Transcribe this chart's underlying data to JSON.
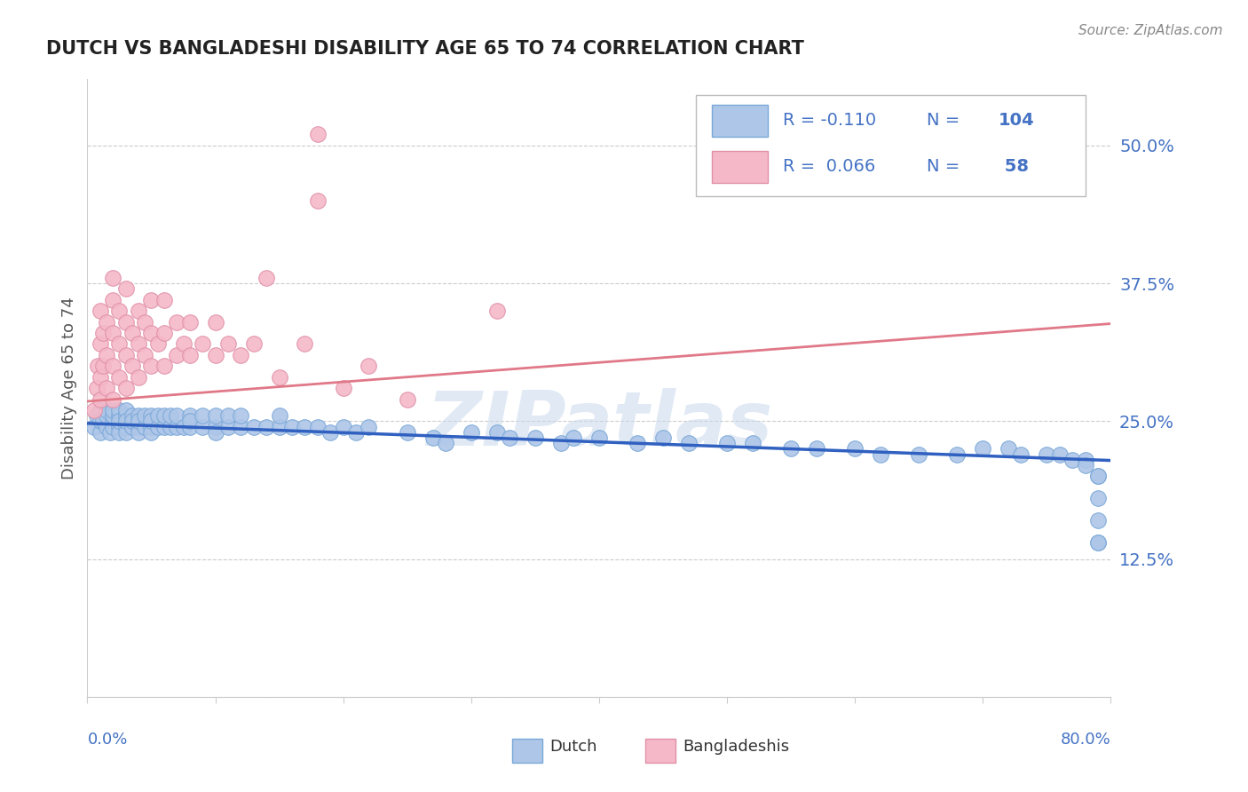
{
  "title": "DUTCH VS BANGLADESHI DISABILITY AGE 65 TO 74 CORRELATION CHART",
  "source": "Source: ZipAtlas.com",
  "ylabel": "Disability Age 65 to 74",
  "xlim": [
    0.0,
    0.8
  ],
  "ylim": [
    0.0,
    0.56
  ],
  "dutch_R": -0.11,
  "dutch_N": 104,
  "bangladeshi_R": 0.066,
  "bangladeshi_N": 58,
  "dutch_color": "#aec6e8",
  "bangladeshi_color": "#f5b8c8",
  "dutch_line_color": "#3060c0",
  "bangladeshi_line_color": "#e07888",
  "label_color": "#4472c4",
  "watermark": "ZIPatlas",
  "dutch_x": [
    0.005,
    0.007,
    0.01,
    0.01,
    0.01,
    0.012,
    0.015,
    0.015,
    0.015,
    0.018,
    0.02,
    0.02,
    0.02,
    0.02,
    0.025,
    0.025,
    0.025,
    0.025,
    0.025,
    0.03,
    0.03,
    0.03,
    0.03,
    0.03,
    0.035,
    0.035,
    0.035,
    0.04,
    0.04,
    0.04,
    0.04,
    0.045,
    0.045,
    0.05,
    0.05,
    0.05,
    0.05,
    0.055,
    0.055,
    0.06,
    0.06,
    0.065,
    0.065,
    0.07,
    0.07,
    0.075,
    0.08,
    0.08,
    0.08,
    0.09,
    0.09,
    0.1,
    0.1,
    0.1,
    0.11,
    0.11,
    0.12,
    0.12,
    0.13,
    0.14,
    0.15,
    0.15,
    0.16,
    0.17,
    0.18,
    0.19,
    0.2,
    0.21,
    0.22,
    0.25,
    0.27,
    0.28,
    0.3,
    0.32,
    0.33,
    0.35,
    0.37,
    0.38,
    0.4,
    0.43,
    0.45,
    0.47,
    0.5,
    0.52,
    0.55,
    0.57,
    0.6,
    0.62,
    0.65,
    0.68,
    0.7,
    0.72,
    0.73,
    0.75,
    0.76,
    0.77,
    0.78,
    0.78,
    0.79,
    0.79,
    0.79,
    0.79,
    0.79,
    0.79
  ],
  "dutch_y": [
    0.245,
    0.255,
    0.24,
    0.26,
    0.25,
    0.25,
    0.245,
    0.255,
    0.26,
    0.24,
    0.25,
    0.245,
    0.255,
    0.26,
    0.245,
    0.255,
    0.24,
    0.26,
    0.25,
    0.245,
    0.255,
    0.24,
    0.26,
    0.25,
    0.245,
    0.255,
    0.25,
    0.245,
    0.255,
    0.24,
    0.25,
    0.245,
    0.255,
    0.245,
    0.255,
    0.24,
    0.25,
    0.245,
    0.255,
    0.245,
    0.255,
    0.245,
    0.255,
    0.245,
    0.255,
    0.245,
    0.245,
    0.255,
    0.25,
    0.245,
    0.255,
    0.245,
    0.255,
    0.24,
    0.245,
    0.255,
    0.245,
    0.255,
    0.245,
    0.245,
    0.245,
    0.255,
    0.245,
    0.245,
    0.245,
    0.24,
    0.245,
    0.24,
    0.245,
    0.24,
    0.235,
    0.23,
    0.24,
    0.24,
    0.235,
    0.235,
    0.23,
    0.235,
    0.235,
    0.23,
    0.235,
    0.23,
    0.23,
    0.23,
    0.225,
    0.225,
    0.225,
    0.22,
    0.22,
    0.22,
    0.225,
    0.225,
    0.22,
    0.22,
    0.22,
    0.215,
    0.215,
    0.21,
    0.2,
    0.2,
    0.18,
    0.16,
    0.14,
    0.14
  ],
  "bangladeshi_x": [
    0.005,
    0.007,
    0.008,
    0.01,
    0.01,
    0.01,
    0.01,
    0.012,
    0.012,
    0.015,
    0.015,
    0.015,
    0.02,
    0.02,
    0.02,
    0.02,
    0.02,
    0.025,
    0.025,
    0.025,
    0.03,
    0.03,
    0.03,
    0.03,
    0.035,
    0.035,
    0.04,
    0.04,
    0.04,
    0.045,
    0.045,
    0.05,
    0.05,
    0.05,
    0.055,
    0.06,
    0.06,
    0.06,
    0.07,
    0.07,
    0.075,
    0.08,
    0.08,
    0.09,
    0.1,
    0.1,
    0.11,
    0.12,
    0.13,
    0.14,
    0.15,
    0.17,
    0.18,
    0.2,
    0.22,
    0.25,
    0.18,
    0.32
  ],
  "bangladeshi_y": [
    0.26,
    0.28,
    0.3,
    0.27,
    0.29,
    0.32,
    0.35,
    0.3,
    0.33,
    0.28,
    0.31,
    0.34,
    0.27,
    0.3,
    0.33,
    0.36,
    0.38,
    0.29,
    0.32,
    0.35,
    0.28,
    0.31,
    0.34,
    0.37,
    0.3,
    0.33,
    0.29,
    0.32,
    0.35,
    0.31,
    0.34,
    0.3,
    0.33,
    0.36,
    0.32,
    0.3,
    0.33,
    0.36,
    0.31,
    0.34,
    0.32,
    0.31,
    0.34,
    0.32,
    0.31,
    0.34,
    0.32,
    0.31,
    0.32,
    0.38,
    0.29,
    0.32,
    0.45,
    0.28,
    0.3,
    0.27,
    0.51,
    0.35
  ]
}
